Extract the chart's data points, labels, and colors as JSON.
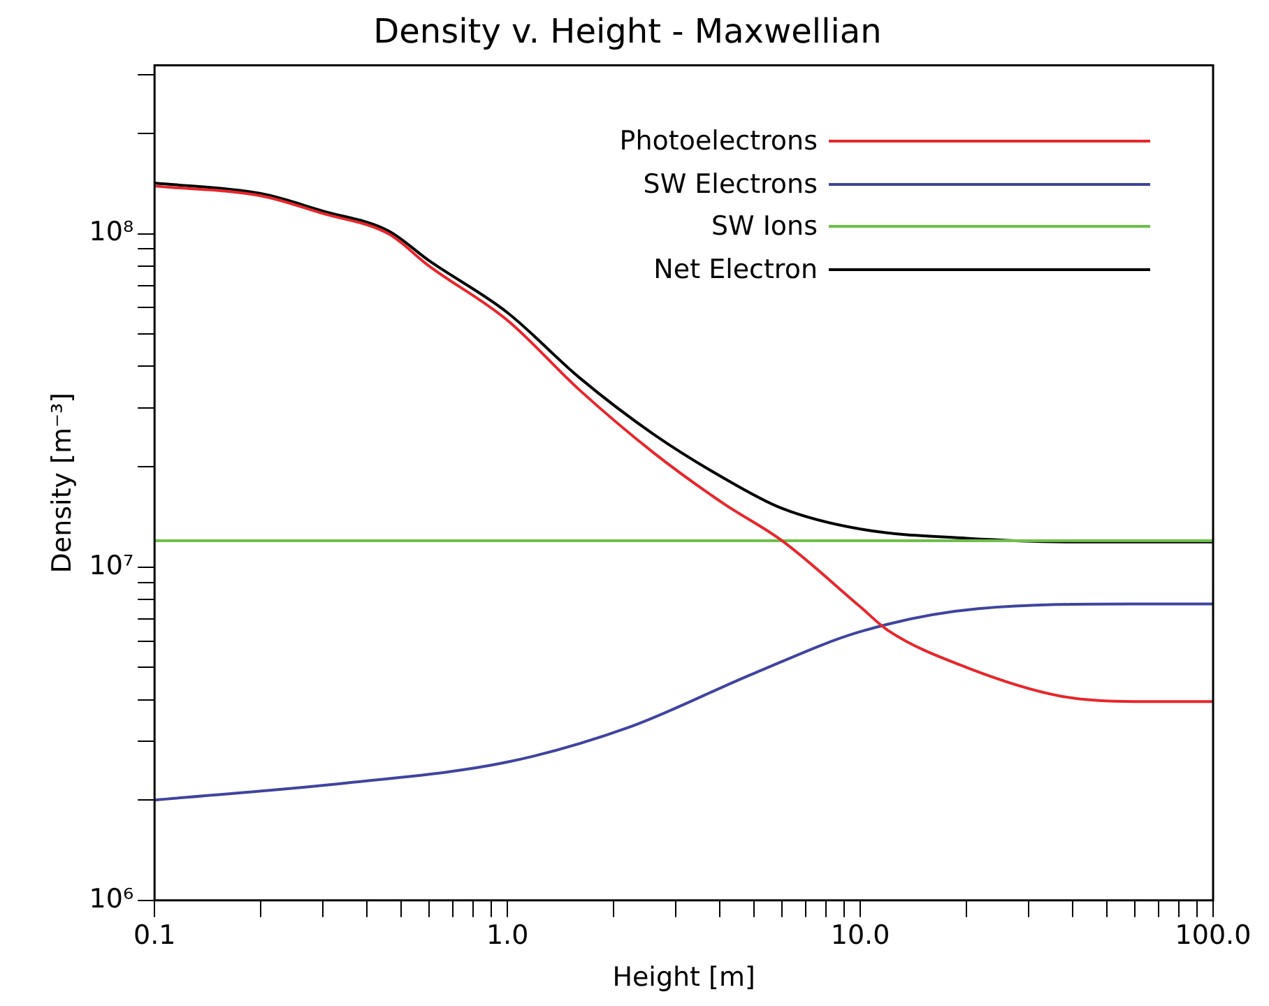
{
  "chart_data": {
    "type": "line",
    "title": "Density v. Height - Maxwellian",
    "xlabel": "Height [m]",
    "ylabel": "Density [m⁻³]",
    "log": "xy",
    "legend": "top right",
    "grid": false,
    "xlim": [
      0.1,
      100
    ],
    "ylim": [
      1000000,
      320000000
    ],
    "xticks": [
      {
        "value": 0.1,
        "label": "0.1"
      },
      {
        "value": 0.2,
        "label": null
      },
      {
        "value": 0.3,
        "label": null
      },
      {
        "value": 0.4,
        "label": null
      },
      {
        "value": 0.5,
        "label": null
      },
      {
        "value": 0.6,
        "label": null
      },
      {
        "value": 0.7,
        "label": null
      },
      {
        "value": 0.8,
        "label": null
      },
      {
        "value": 0.9,
        "label": null
      },
      {
        "value": 1,
        "label": "1.0"
      },
      {
        "value": 2,
        "label": null
      },
      {
        "value": 3,
        "label": null
      },
      {
        "value": 4,
        "label": null
      },
      {
        "value": 5,
        "label": null
      },
      {
        "value": 6,
        "label": null
      },
      {
        "value": 7,
        "label": null
      },
      {
        "value": 8,
        "label": null
      },
      {
        "value": 9,
        "label": null
      },
      {
        "value": 10,
        "label": "10.0"
      },
      {
        "value": 20,
        "label": null
      },
      {
        "value": 30,
        "label": null
      },
      {
        "value": 40,
        "label": null
      },
      {
        "value": 50,
        "label": null
      },
      {
        "value": 60,
        "label": null
      },
      {
        "value": 70,
        "label": null
      },
      {
        "value": 80,
        "label": null
      },
      {
        "value": 90,
        "label": null
      },
      {
        "value": 100,
        "label": "100.0"
      }
    ],
    "yticks": [
      {
        "value": 1000000,
        "label": "10⁶"
      },
      {
        "value": 2000000,
        "label": null
      },
      {
        "value": 3000000,
        "label": null
      },
      {
        "value": 4000000,
        "label": null
      },
      {
        "value": 5000000,
        "label": null
      },
      {
        "value": 6000000,
        "label": null
      },
      {
        "value": 7000000,
        "label": null
      },
      {
        "value": 8000000,
        "label": null
      },
      {
        "value": 9000000,
        "label": null
      },
      {
        "value": 10000000,
        "label": "10⁷"
      },
      {
        "value": 20000000,
        "label": null
      },
      {
        "value": 30000000,
        "label": null
      },
      {
        "value": 40000000,
        "label": null
      },
      {
        "value": 50000000,
        "label": null
      },
      {
        "value": 60000000,
        "label": null
      },
      {
        "value": 70000000,
        "label": null
      },
      {
        "value": 80000000,
        "label": null
      },
      {
        "value": 90000000,
        "label": null
      },
      {
        "value": 100000000,
        "label": "10⁸"
      },
      {
        "value": 200000000,
        "label": null
      },
      {
        "value": 300000000,
        "label": null
      }
    ],
    "series": [
      {
        "name": "Photoelectrons",
        "color": "#e8262b",
        "x": [
          0.1,
          0.2,
          0.3,
          0.46,
          0.6,
          1,
          1.6,
          2.6,
          4.1,
          6,
          10,
          12,
          20,
          37,
          60,
          100
        ],
        "values": [
          139000000,
          130000000,
          115000000,
          100000000,
          80000000,
          55000000,
          34000000,
          22000000,
          15500000,
          12000000,
          7600000,
          6450000,
          5000000,
          4100000,
          3950000,
          3950000
        ]
      },
      {
        "name": "SW Electrons",
        "color": "#3f44a0",
        "x": [
          0.1,
          0.35,
          1,
          2.2,
          5,
          10,
          21.6,
          60,
          100
        ],
        "values": [
          2000000,
          2250000,
          2600000,
          3300000,
          4800000,
          6400000,
          7500000,
          7750000,
          7750000
        ]
      },
      {
        "name": "SW Ions",
        "color": "#6cc04a",
        "x": [
          0.1,
          100
        ],
        "values": [
          12000000,
          12000000
        ]
      },
      {
        "name": "Net Electron",
        "color": "#000000",
        "x": [
          0.1,
          0.2,
          0.3,
          0.46,
          0.6,
          1,
          1.6,
          2.6,
          4.1,
          6,
          10,
          20,
          40,
          100
        ],
        "values": [
          142000000,
          132000000,
          117000000,
          102000000,
          83000000,
          58000000,
          37000000,
          25000000,
          18500000,
          15000000,
          13000000,
          12200000,
          11900000,
          11900000
        ]
      }
    ]
  }
}
